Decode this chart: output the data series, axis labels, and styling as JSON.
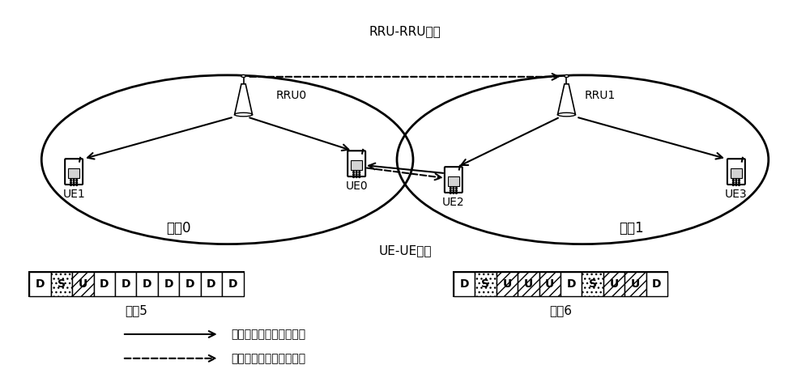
{
  "rru_rru_label": "RRU-RRU干扰",
  "ue_ue_label": "UE-UE干扰",
  "rru0_label": "RRU0",
  "rru1_label": "RRU1",
  "ue0_label": "UE0",
  "ue1_label": "UE1",
  "ue2_label": "UE2",
  "ue3_label": "UE3",
  "cell0_label": "小区0",
  "cell1_label": "小区1",
  "config5_label": "配的5",
  "config6_label": "配的6",
  "config5_slots": [
    "D",
    "S",
    "U",
    "D",
    "D",
    "D",
    "D",
    "D",
    "D",
    "D"
  ],
  "config6_slots": [
    "D",
    "S",
    "U",
    "U",
    "U",
    "D",
    "S",
    "U",
    "U",
    "D"
  ],
  "legend_solid": "接入子帧期间的期望信号",
  "legend_dashed": "接入子帧期间的干扰信号",
  "bg_color": "#ffffff"
}
